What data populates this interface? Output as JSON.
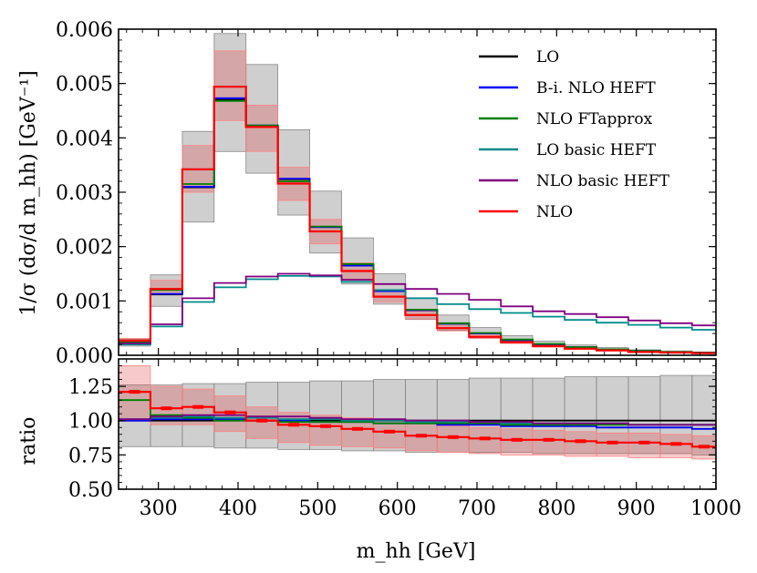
{
  "chart_data": {
    "type": "line",
    "style": "step",
    "bins": [
      250,
      290,
      330,
      370,
      410,
      450,
      490,
      530,
      570,
      610,
      650,
      690,
      730,
      770,
      810,
      850,
      890,
      930,
      970,
      1000
    ],
    "top_panel": {
      "ylabel": "1/σ (dσ/d m_hh) [GeV⁻¹]",
      "ylim": [
        0,
        0.006
      ],
      "yticks": [
        0.0,
        0.001,
        0.002,
        0.003,
        0.004,
        0.005,
        0.006
      ],
      "ytick_labels": [
        "0.000",
        "0.001",
        "0.002",
        "0.003",
        "0.004",
        "0.005",
        "0.006"
      ],
      "series": [
        {
          "name": "LO",
          "color": "#000000",
          "values": [
            0.00022,
            0.00112,
            0.00309,
            0.0047,
            0.00422,
            0.00324,
            0.00236,
            0.00165,
            0.00118,
            0.00083,
            0.00058,
            0.0004,
            0.00028,
            0.0002,
            0.00015,
            0.00011,
            8e-05,
            6e-05,
            5e-05
          ]
        },
        {
          "name": "B-i. NLO HEFT",
          "color": "#0000ff",
          "values": [
            0.00022,
            0.00113,
            0.0031,
            0.00473,
            0.00423,
            0.00325,
            0.00236,
            0.00165,
            0.00118,
            0.00083,
            0.00058,
            0.0004,
            0.00028,
            0.0002,
            0.00015,
            0.00011,
            8e-05,
            6e-05,
            5e-05
          ]
        },
        {
          "name": "NLO FTapprox",
          "color": "#008000",
          "values": [
            0.00025,
            0.0012,
            0.00315,
            0.00468,
            0.00423,
            0.0032,
            0.00237,
            0.00168,
            0.0012,
            0.00084,
            0.00059,
            0.00041,
            0.00029,
            0.00021,
            0.00015,
            0.00011,
            8e-05,
            6e-05,
            5e-05
          ]
        },
        {
          "name": "LO basic HEFT",
          "color": "#008b8b",
          "values": [
            0.0002,
            0.00053,
            0.00098,
            0.00125,
            0.0014,
            0.00146,
            0.00145,
            0.00135,
            0.0012,
            0.00105,
            0.00094,
            0.00085,
            0.00078,
            0.00071,
            0.00065,
            0.0006,
            0.00056,
            0.00051,
            0.00047
          ]
        },
        {
          "name": "NLO basic HEFT",
          "color": "#800080",
          "values": [
            0.00022,
            0.00057,
            0.00105,
            0.00133,
            0.00145,
            0.0015,
            0.00147,
            0.00139,
            0.00131,
            0.00122,
            0.00113,
            0.00102,
            0.0009,
            0.00081,
            0.00076,
            0.0007,
            0.00064,
            0.00059,
            0.00055
          ]
        },
        {
          "name": "NLO",
          "color": "#ff0000",
          "values": [
            0.00027,
            0.00122,
            0.00342,
            0.00494,
            0.0042,
            0.00316,
            0.00228,
            0.00155,
            0.00108,
            0.00074,
            0.0005,
            0.00034,
            0.00024,
            0.00017,
            0.00012,
            9e-05,
            6e-05,
            5e-05,
            4e-05
          ]
        }
      ],
      "bands": [
        {
          "name": "LO band",
          "color": "#000000",
          "lower": [
            0.00017,
            0.0009,
            0.00245,
            0.00375,
            0.00335,
            0.00258,
            0.00188,
            0.00131,
            0.00094,
            0.00066,
            0.00046,
            0.00032,
            0.00022,
            0.00016,
            0.00012,
            9e-05,
            6e-05,
            5e-05,
            4e-05
          ],
          "upper": [
            0.0003,
            0.00148,
            0.00412,
            0.00592,
            0.00535,
            0.00415,
            0.00302,
            0.00216,
            0.0015,
            0.00106,
            0.00074,
            0.00051,
            0.00036,
            0.00026,
            0.00019,
            0.00014,
            0.0001,
            8e-05,
            6e-05
          ]
        },
        {
          "name": "NLO band",
          "color": "#ff0000",
          "lower": [
            0.00024,
            0.00112,
            0.003,
            0.00432,
            0.00375,
            0.00285,
            0.00205,
            0.0014,
            0.00098,
            0.00067,
            0.00045,
            0.00031,
            0.00022,
            0.00015,
            0.00011,
            8e-05,
            6e-05,
            4e-05,
            3e-05
          ],
          "upper": [
            0.00031,
            0.00138,
            0.00386,
            0.0056,
            0.0046,
            0.00346,
            0.0025,
            0.0017,
            0.00118,
            0.00081,
            0.00055,
            0.00037,
            0.00026,
            0.00019,
            0.00013,
            0.0001,
            7e-05,
            5e-05,
            4e-05
          ]
        }
      ]
    },
    "ratio_panel": {
      "ylabel": "ratio",
      "ylim": [
        0.5,
        1.45
      ],
      "yticks": [
        0.5,
        0.75,
        1.0,
        1.25
      ],
      "ytick_labels": [
        "0.50",
        "0.75",
        "1.00",
        "1.25"
      ],
      "series": [
        {
          "name": "LO",
          "color": "#000000",
          "values": [
            1.0,
            1.0,
            1.0,
            1.0,
            1.0,
            1.0,
            1.0,
            1.0,
            1.0,
            1.0,
            1.0,
            1.0,
            1.0,
            1.0,
            1.0,
            1.0,
            1.0,
            1.0,
            1.0
          ]
        },
        {
          "name": "B-i. NLO HEFT",
          "color": "#0000ff",
          "values": [
            1.0,
            1.01,
            1.01,
            1.01,
            1.0,
            1.0,
            0.99,
            0.99,
            0.98,
            0.98,
            0.97,
            0.97,
            0.96,
            0.96,
            0.96,
            0.95,
            0.95,
            0.95,
            0.94
          ]
        },
        {
          "name": "NLO FTapprox",
          "color": "#008000",
          "values": [
            1.15,
            1.04,
            1.02,
            1.0,
            1.0,
            0.99,
            0.99,
            0.99,
            0.98,
            0.98,
            0.98,
            0.98,
            0.97,
            0.97,
            0.97,
            0.97,
            0.97,
            0.97,
            0.97
          ]
        },
        {
          "name": "LO basic HEFT",
          "color": "#008b8b",
          "values": [
            1.01,
            1.02,
            1.03,
            1.02,
            1.02,
            1.01,
            1.01,
            1.0,
            1.0,
            0.99,
            0.99,
            0.99,
            0.98,
            0.98,
            0.98,
            0.98,
            0.97,
            0.97,
            0.97
          ]
        },
        {
          "name": "NLO basic HEFT",
          "color": "#800080",
          "values": [
            1.01,
            1.03,
            1.04,
            1.04,
            1.03,
            1.03,
            1.02,
            1.01,
            1.01,
            1.0,
            1.0,
            0.99,
            0.99,
            0.98,
            0.98,
            0.98,
            0.97,
            0.97,
            0.97
          ]
        },
        {
          "name": "NLO",
          "color": "#ff0000",
          "values": [
            1.21,
            1.09,
            1.1,
            1.06,
            1.0,
            0.97,
            0.96,
            0.94,
            0.92,
            0.89,
            0.88,
            0.87,
            0.86,
            0.86,
            0.85,
            0.84,
            0.84,
            0.83,
            0.81
          ]
        }
      ],
      "bands": [
        {
          "name": "LO ratio band",
          "color": "#000000",
          "lower": [
            0.81,
            0.81,
            0.81,
            0.8,
            0.8,
            0.79,
            0.79,
            0.78,
            0.78,
            0.77,
            0.77,
            0.77,
            0.77,
            0.76,
            0.76,
            0.76,
            0.76,
            0.76,
            0.75
          ],
          "upper": [
            1.26,
            1.26,
            1.27,
            1.27,
            1.28,
            1.28,
            1.29,
            1.29,
            1.3,
            1.3,
            1.3,
            1.31,
            1.31,
            1.31,
            1.32,
            1.32,
            1.32,
            1.33,
            1.33
          ]
        },
        {
          "name": "NLO ratio band",
          "color": "#ff0000",
          "lower": [
            1.0,
            0.97,
            0.97,
            0.92,
            0.87,
            0.84,
            0.82,
            0.81,
            0.8,
            0.78,
            0.77,
            0.76,
            0.75,
            0.75,
            0.74,
            0.74,
            0.73,
            0.73,
            0.72
          ]
        },
        {
          "name": "NLO ratio band upper",
          "color": "#ff0000",
          "upper_only": true,
          "upper": [
            1.4,
            1.25,
            1.23,
            1.18,
            1.1,
            1.06,
            1.04,
            1.02,
            1.0,
            0.98,
            0.96,
            0.95,
            0.94,
            0.93,
            0.92,
            0.91,
            0.91,
            0.9,
            0.89
          ]
        }
      ]
    },
    "xlabel": "m_hh [GeV]",
    "xlim": [
      250,
      1000
    ],
    "xticks": [
      300,
      400,
      500,
      600,
      700,
      800,
      900,
      1000
    ],
    "xtick_labels": [
      "300",
      "400",
      "500",
      "600",
      "700",
      "800",
      "900",
      "1000"
    ],
    "legend": {
      "location": "top-right",
      "entries": [
        {
          "label": "LO",
          "color": "#000000"
        },
        {
          "label": "B-i. NLO HEFT",
          "color": "#0000ff"
        },
        {
          "label": "NLO FTapprox",
          "color": "#008000"
        },
        {
          "label": "LO basic HEFT",
          "color": "#008b8b"
        },
        {
          "label": "NLO basic HEFT",
          "color": "#800080"
        },
        {
          "label": "NLO",
          "color": "#ff0000"
        }
      ]
    }
  }
}
